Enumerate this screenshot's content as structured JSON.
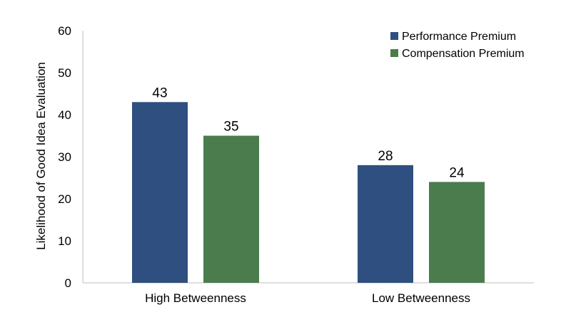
{
  "chart_data": {
    "type": "bar",
    "categories": [
      "High Betweenness",
      "Low Betweenness"
    ],
    "series": [
      {
        "name": "Performance Premium",
        "values": [
          43,
          28
        ],
        "color": "#2e4f7f"
      },
      {
        "name": "Compensation Premium",
        "values": [
          35,
          24
        ],
        "color": "#4a7c4e"
      }
    ],
    "ylabel": "Likelihood of Good Idea Evaluation",
    "xlabel": "",
    "ylim": [
      0,
      60
    ],
    "yticks": [
      0,
      10,
      20,
      30,
      40,
      50,
      60
    ],
    "grid": false,
    "legend_position": "top-right",
    "data_labels": true
  }
}
